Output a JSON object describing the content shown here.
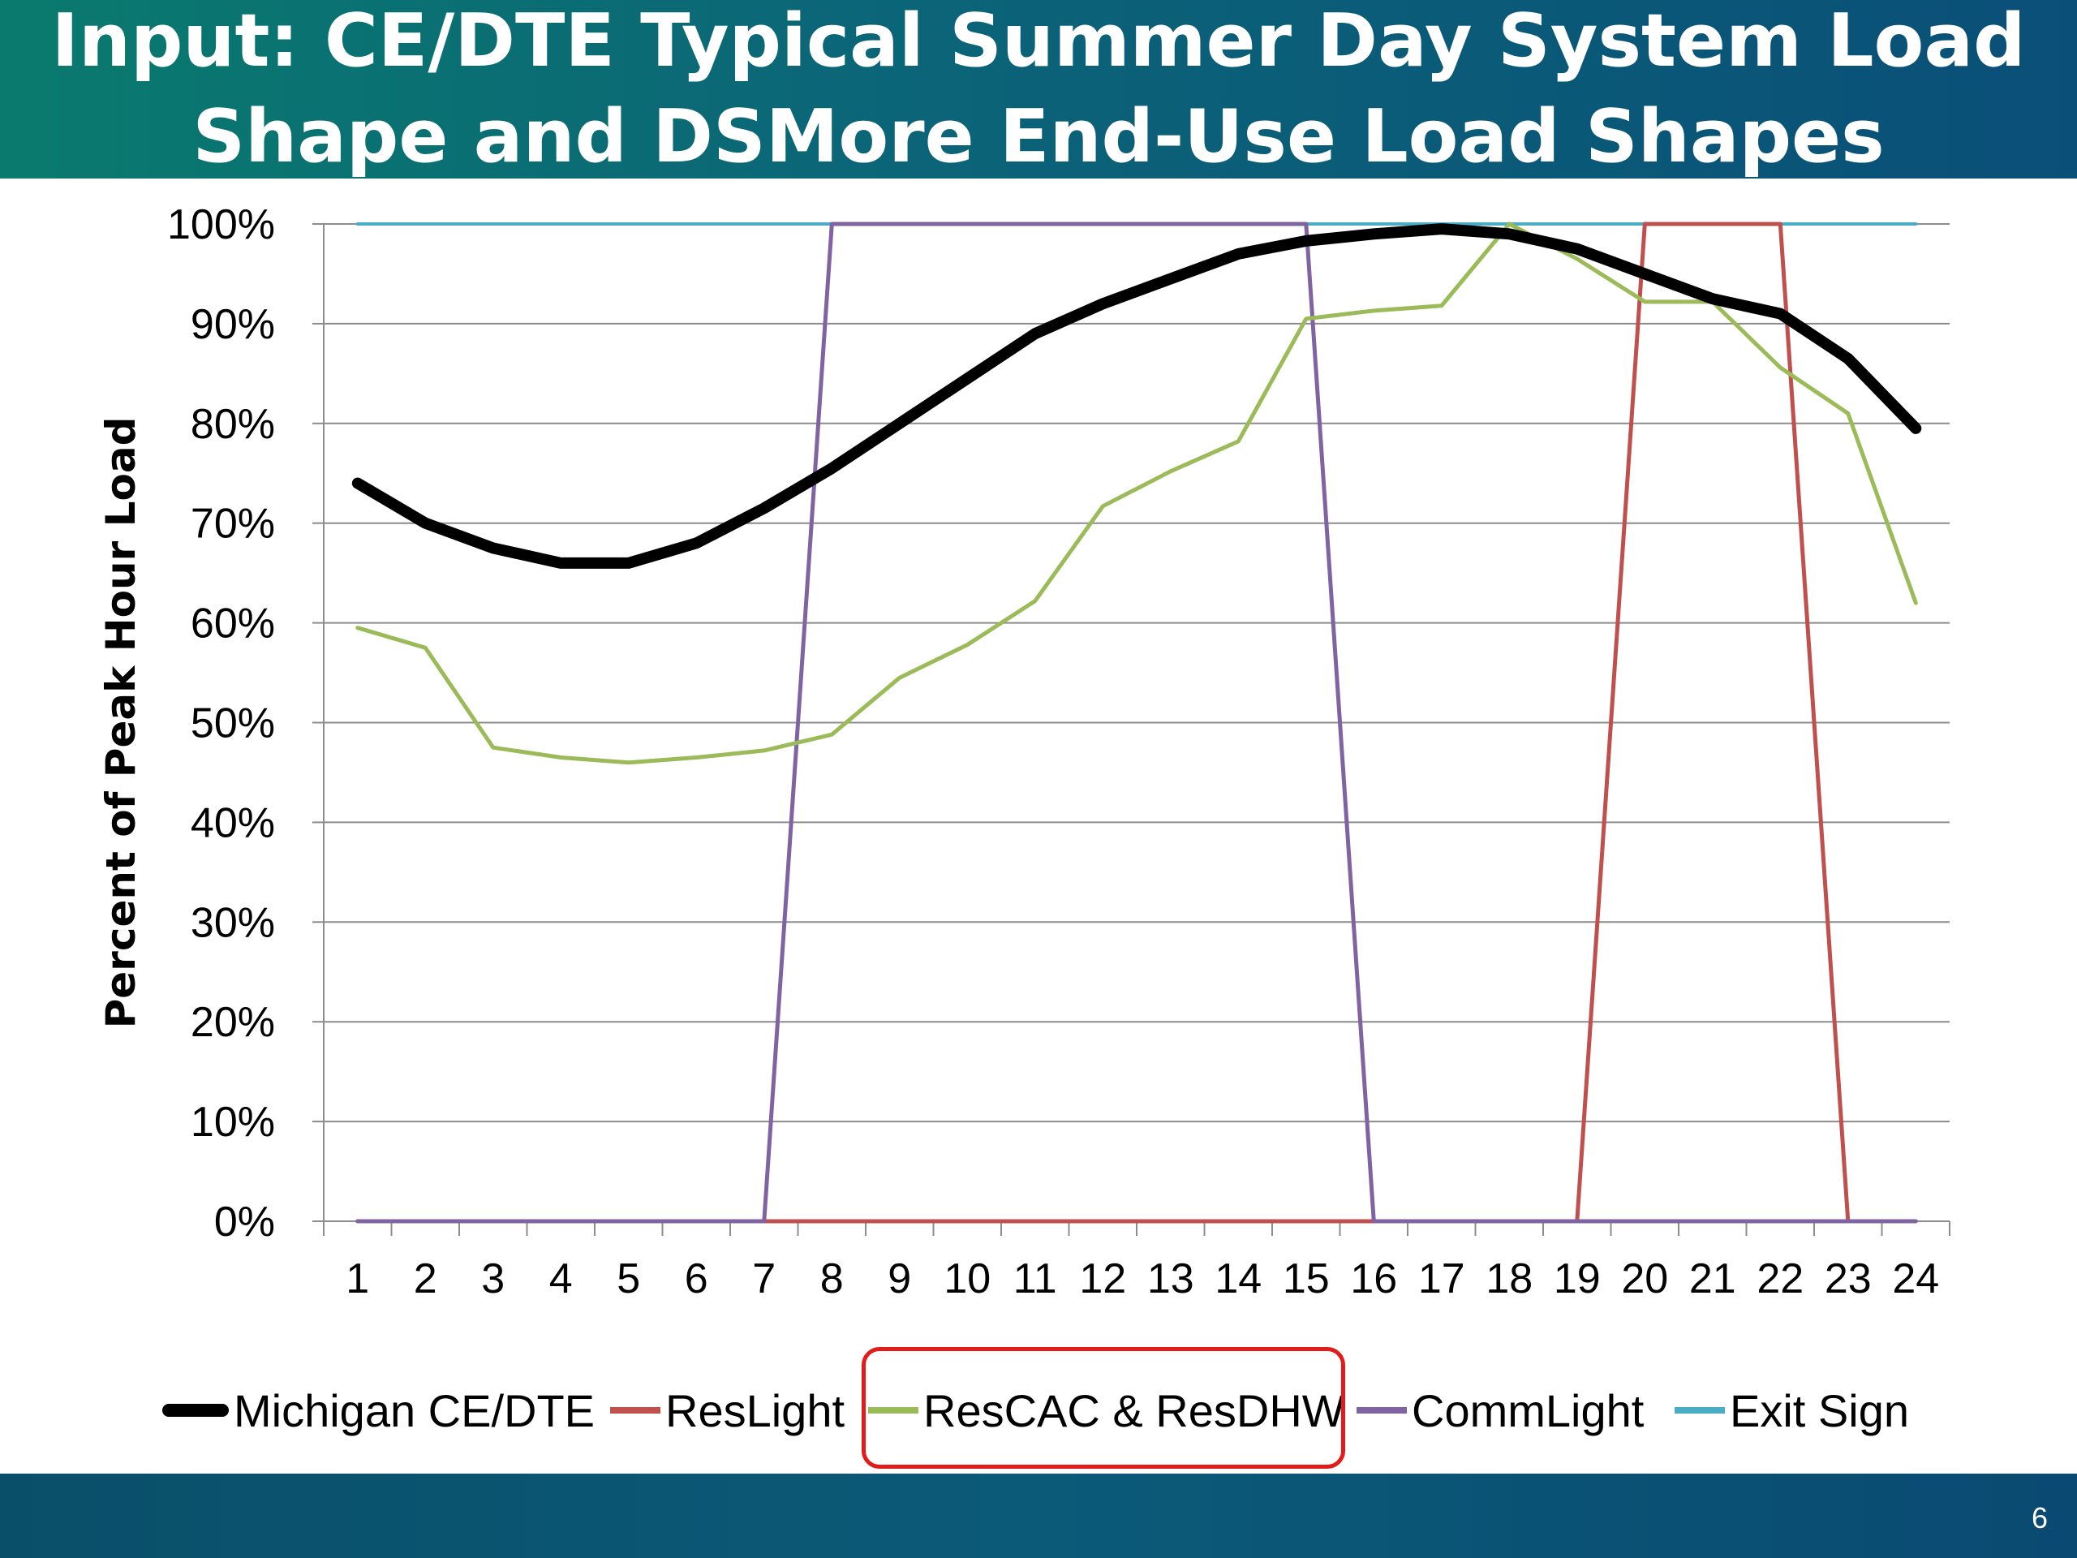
{
  "slide": {
    "title_line1": "Input: CE/DTE  Typical Summer Day System Load",
    "title_line2": "Shape and DSMore End-Use Load Shapes",
    "page_number": "6"
  },
  "colors": {
    "michigan": "#000000",
    "reslight": "#c0504d",
    "rescac": "#9bbb59",
    "commlight": "#8064a2",
    "exitsign": "#4bacc6",
    "highlight": "#e41b1b"
  },
  "legend": {
    "items": [
      {
        "label": "Michigan CE/DTE",
        "color": "#000000"
      },
      {
        "label": "ResLight",
        "color": "#c0504d"
      },
      {
        "label": "ResCAC & ResDHW",
        "color": "#9bbb59"
      },
      {
        "label": "CommLight",
        "color": "#8064a2"
      },
      {
        "label": "Exit Sign",
        "color": "#4bacc6"
      }
    ],
    "highlighted": "ResCAC & ResDHW"
  },
  "chart_data": {
    "type": "line",
    "title": "",
    "xlabel": "",
    "ylabel": "Percent of Peak Hour Load",
    "x": [
      1,
      2,
      3,
      4,
      5,
      6,
      7,
      8,
      9,
      10,
      11,
      12,
      13,
      14,
      15,
      16,
      17,
      18,
      19,
      20,
      21,
      22,
      23,
      24
    ],
    "yticks": [
      "0%",
      "10%",
      "20%",
      "30%",
      "40%",
      "50%",
      "60%",
      "70%",
      "80%",
      "90%",
      "100%"
    ],
    "ylim": [
      0,
      1
    ],
    "grid": true,
    "legend_position": "bottom",
    "series": [
      {
        "name": "Michigan CE/DTE",
        "color": "#000000",
        "values": [
          0.74,
          0.7,
          0.675,
          0.66,
          0.66,
          0.68,
          0.715,
          0.755,
          0.8,
          0.845,
          0.89,
          0.92,
          0.945,
          0.97,
          0.983,
          0.99,
          0.995,
          0.99,
          0.975,
          0.95,
          0.925,
          0.91,
          0.865,
          0.795
        ]
      },
      {
        "name": "ResLight",
        "color": "#c0504d",
        "values": [
          0,
          0,
          0,
          0,
          0,
          0,
          0,
          0,
          0,
          0,
          0,
          0,
          0,
          0,
          0,
          0,
          0,
          0,
          0,
          1,
          1,
          1,
          0,
          0
        ]
      },
      {
        "name": "ResCAC & ResDHW",
        "color": "#9bbb59",
        "values": [
          0.595,
          0.575,
          0.475,
          0.465,
          0.46,
          0.465,
          0.472,
          0.488,
          0.545,
          0.578,
          0.622,
          0.717,
          0.752,
          0.782,
          0.905,
          0.913,
          0.918,
          1.0,
          0.965,
          0.922,
          0.922,
          0.856,
          0.81,
          0.62
        ]
      },
      {
        "name": "CommLight",
        "color": "#8064a2",
        "values": [
          0,
          0,
          0,
          0,
          0,
          0,
          0,
          1,
          1,
          1,
          1,
          1,
          1,
          1,
          1,
          0,
          0,
          0,
          0,
          0,
          0,
          0,
          0,
          0
        ]
      },
      {
        "name": "Exit Sign",
        "color": "#4bacc6",
        "values": [
          1,
          1,
          1,
          1,
          1,
          1,
          1,
          1,
          1,
          1,
          1,
          1,
          1,
          1,
          1,
          1,
          1,
          1,
          1,
          1,
          1,
          1,
          1,
          1
        ]
      }
    ]
  }
}
